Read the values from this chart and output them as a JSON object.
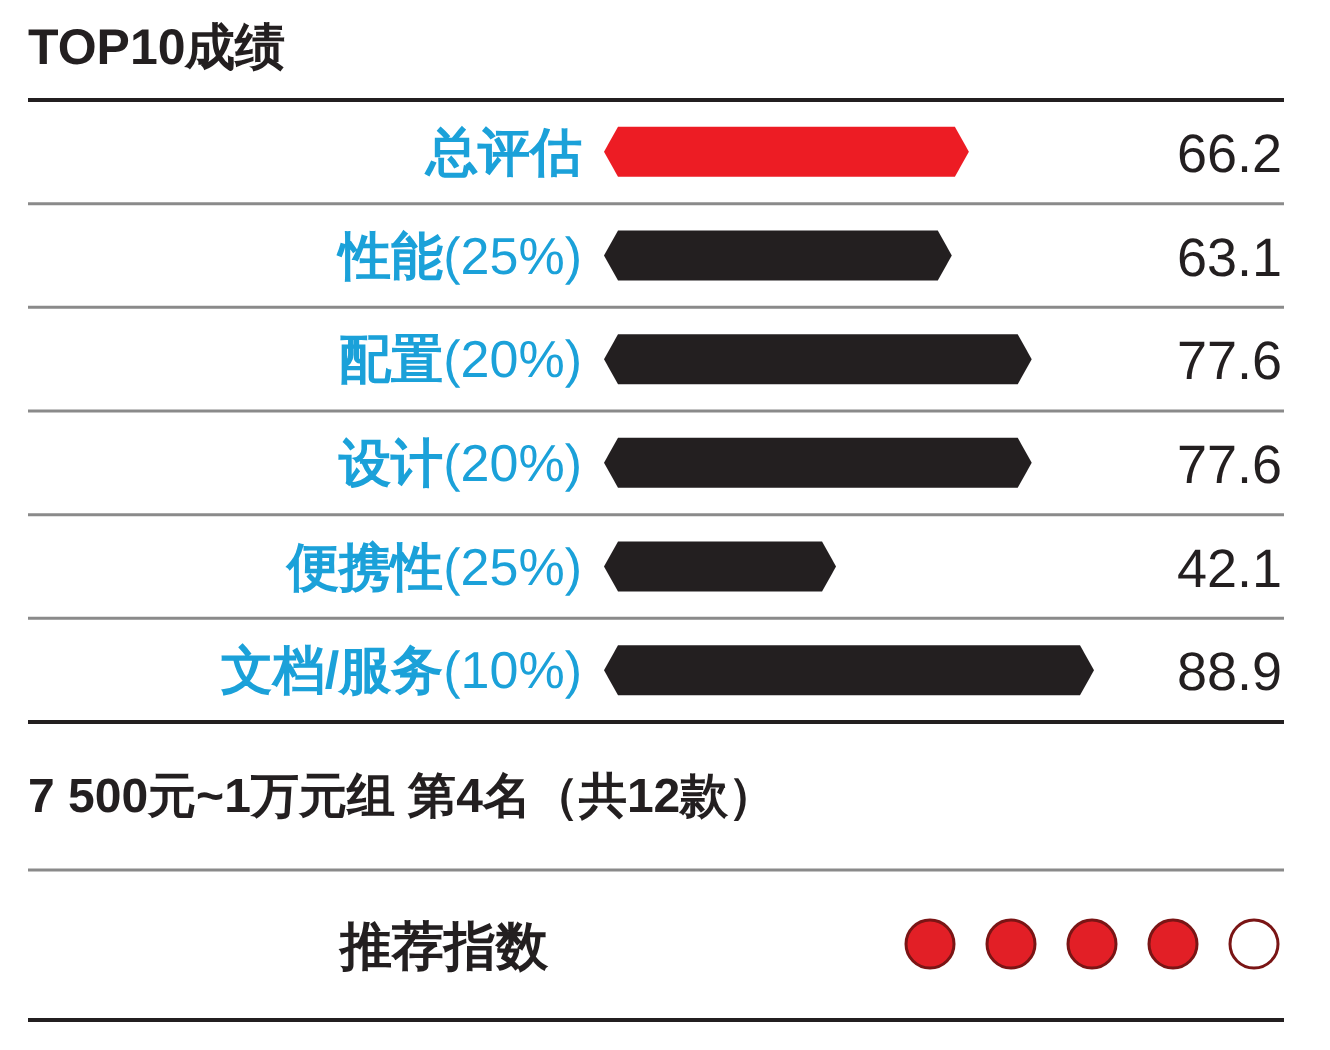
{
  "chart_data": {
    "type": "bar",
    "orientation": "horizontal",
    "title": "TOP10成绩",
    "categories": [
      "**总评估**",
      "**性能**(25%)",
      "**配置**(20%)",
      "**设计**(20%)",
      "**便携性**(25%)",
      "**文档/服务**(10%)"
    ],
    "values": [
      66.2,
      63.1,
      77.6,
      77.6,
      42.1,
      88.9
    ],
    "colors": [
      "#ed1c24",
      "#231f20",
      "#231f20",
      "#231f20",
      "#231f20",
      "#231f20"
    ],
    "data_labels": true,
    "annotations": [
      "7 500元~1万元组 第4名（共12款）",
      "推荐指数"
    ]
  }
}
